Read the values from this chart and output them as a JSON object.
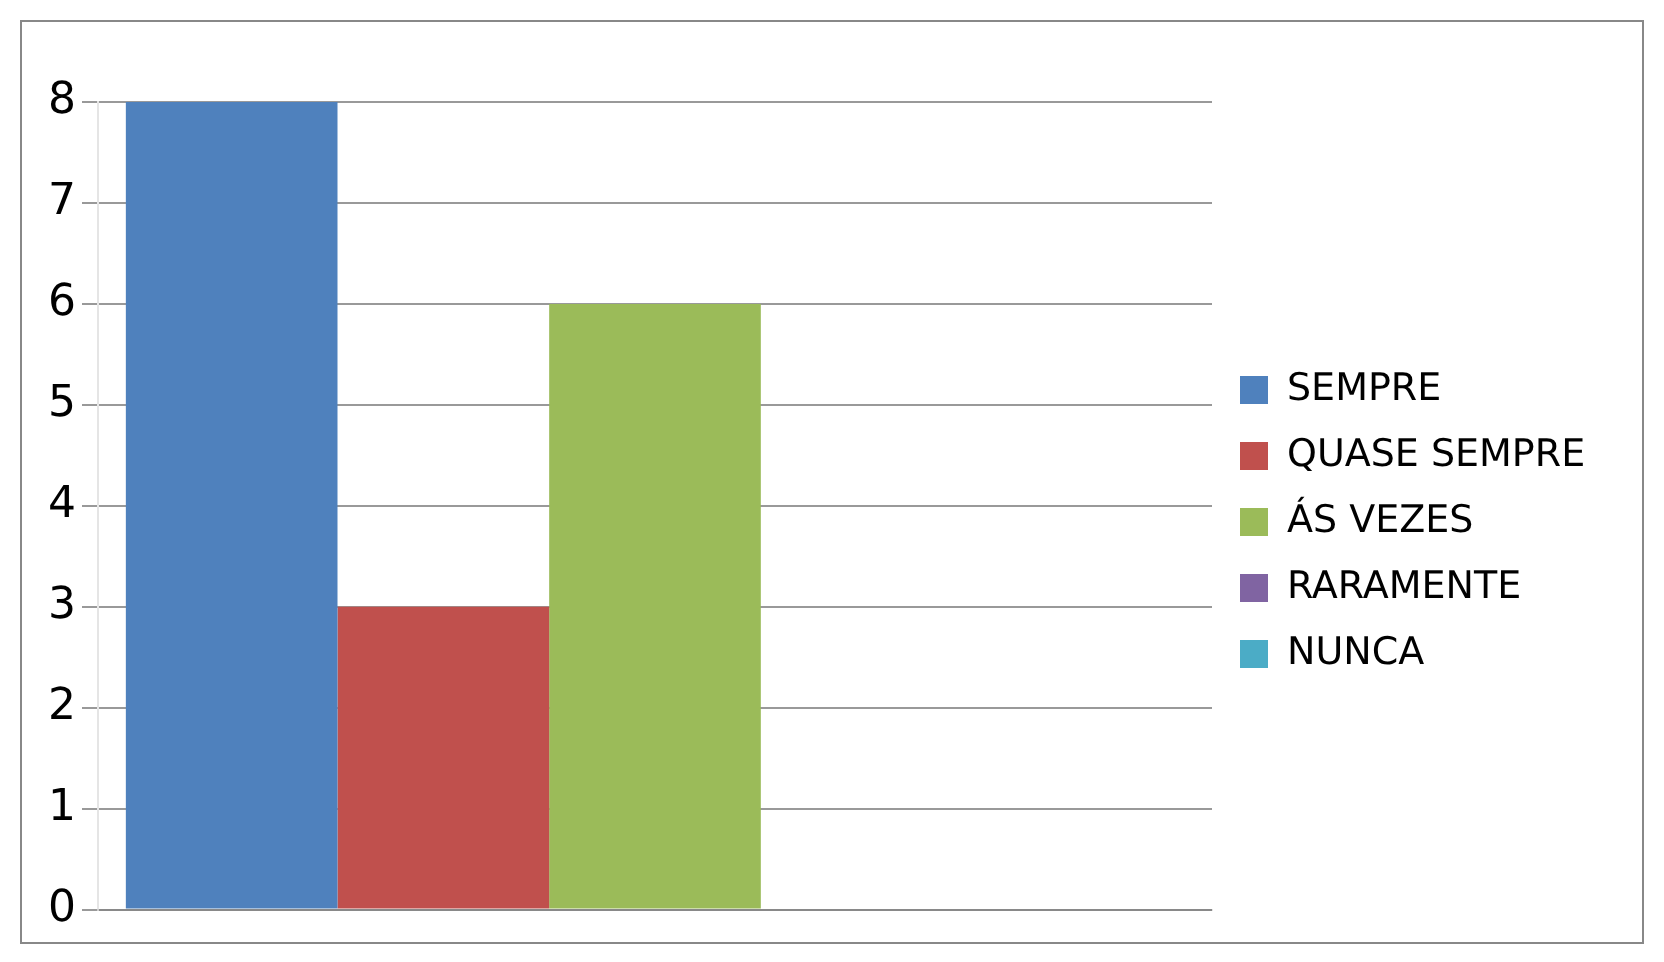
{
  "chart_data": {
    "type": "bar",
    "categories": [
      null
    ],
    "series": [
      {
        "name": "SEMPRE",
        "color": "#4f81bd",
        "values": [
          8
        ]
      },
      {
        "name": "QUASE SEMPRE",
        "color": "#c0504d",
        "values": [
          3
        ]
      },
      {
        "name": "ÁS VEZES",
        "color": "#9bbb59",
        "values": [
          6
        ]
      },
      {
        "name": "RARAMENTE",
        "color": "#8064a2",
        "values": [
          0
        ]
      },
      {
        "name": "NUNCA",
        "color": "#4bacc6",
        "values": [
          0
        ]
      }
    ],
    "ylim": [
      0,
      8
    ],
    "yticks": [
      0,
      1,
      2,
      3,
      4,
      5,
      6,
      7,
      8
    ],
    "grid": "y",
    "legend": "right",
    "tick_labels": "y"
  }
}
